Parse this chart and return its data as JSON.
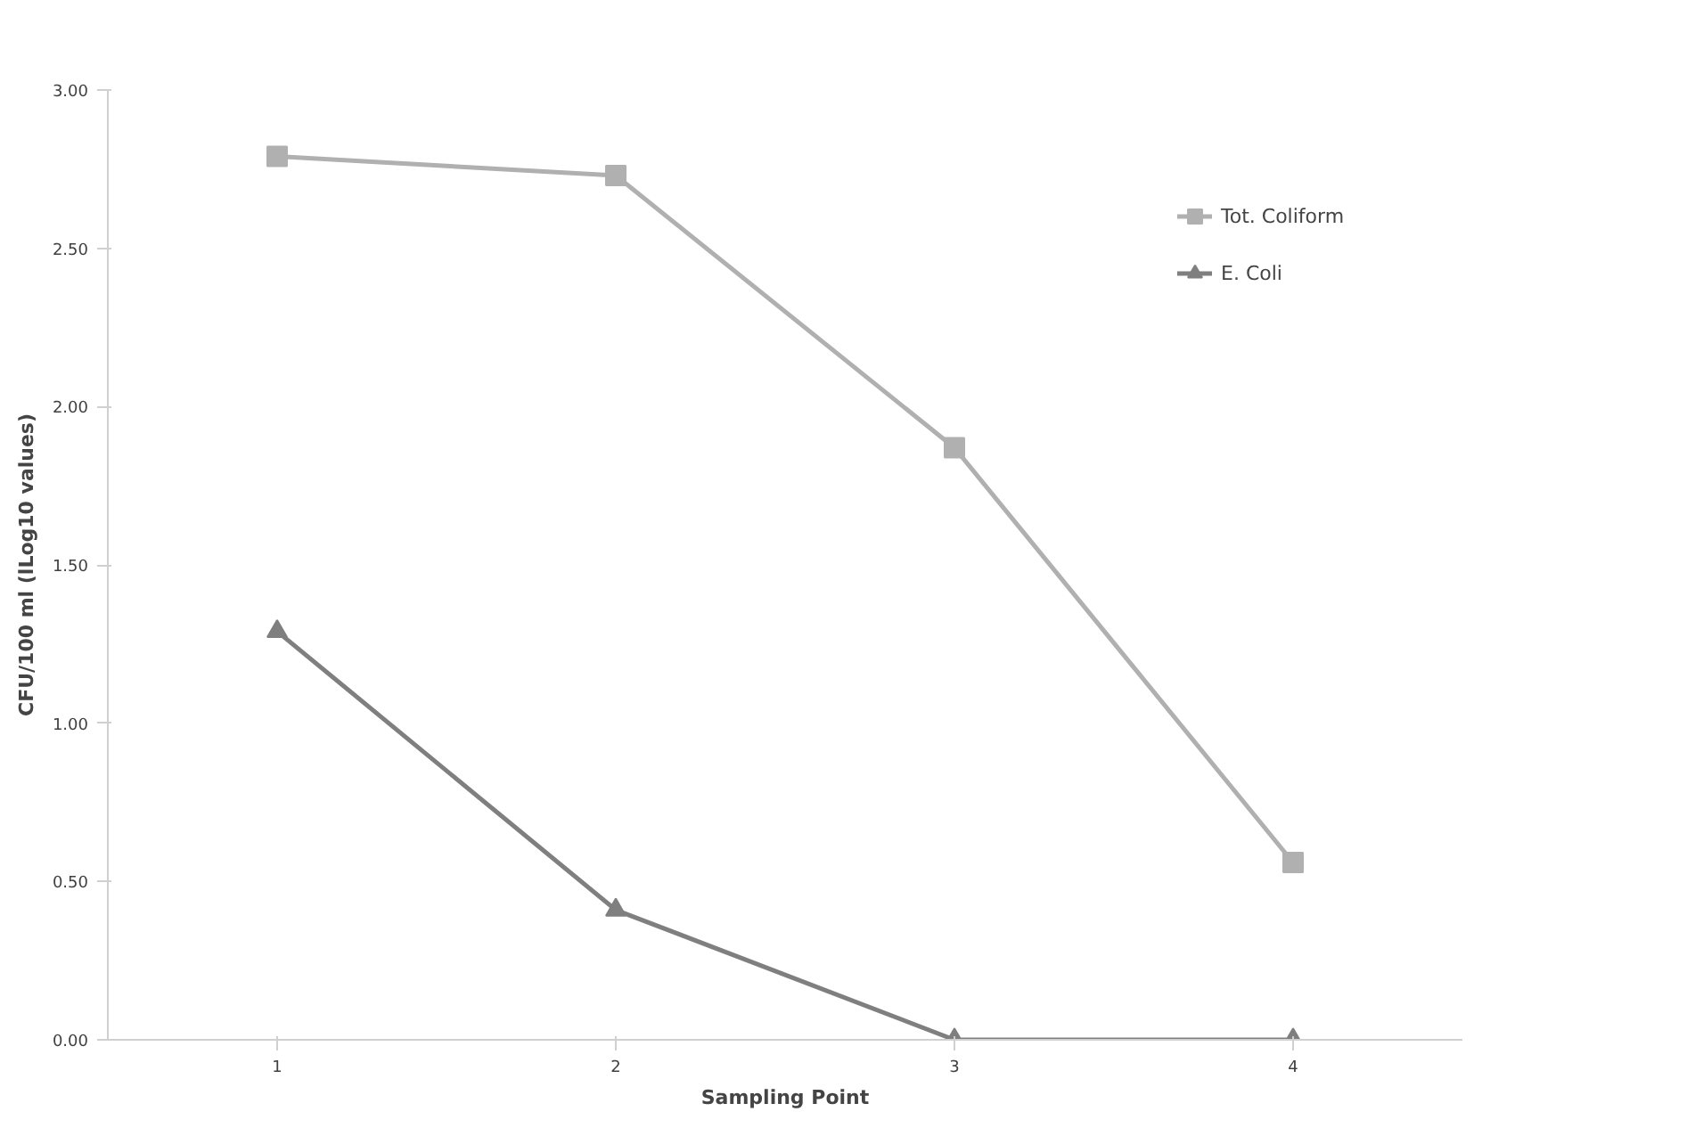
{
  "chart_data": {
    "type": "line",
    "xlabel": "Sampling Point",
    "ylabel": "CFU/100 ml (lLog10 values)",
    "categories": [
      "1",
      "2",
      "3",
      "4"
    ],
    "series": [
      {
        "name": "Tot. Coliform",
        "color": "#b0b0b0",
        "values": [
          2.79,
          2.73,
          1.87,
          0.56
        ],
        "marker": "square"
      },
      {
        "name": "E. Coli",
        "color": "#7f7f7f",
        "values": [
          1.29,
          0.41,
          0.0,
          0.0
        ],
        "marker": "triangle"
      }
    ],
    "ylim": [
      0,
      3
    ],
    "yticks": [
      {
        "value": 0,
        "label": "0.00"
      },
      {
        "value": 0.5,
        "label": "0.50"
      },
      {
        "value": 1,
        "label": "1.00"
      },
      {
        "value": 1.5,
        "label": "1.50"
      },
      {
        "value": 2,
        "label": "2.00"
      },
      {
        "value": 2.5,
        "label": "2.50"
      },
      {
        "value": 3,
        "label": "3.00"
      }
    ],
    "grid": false,
    "legend": "top right",
    "line_style": "solid"
  }
}
